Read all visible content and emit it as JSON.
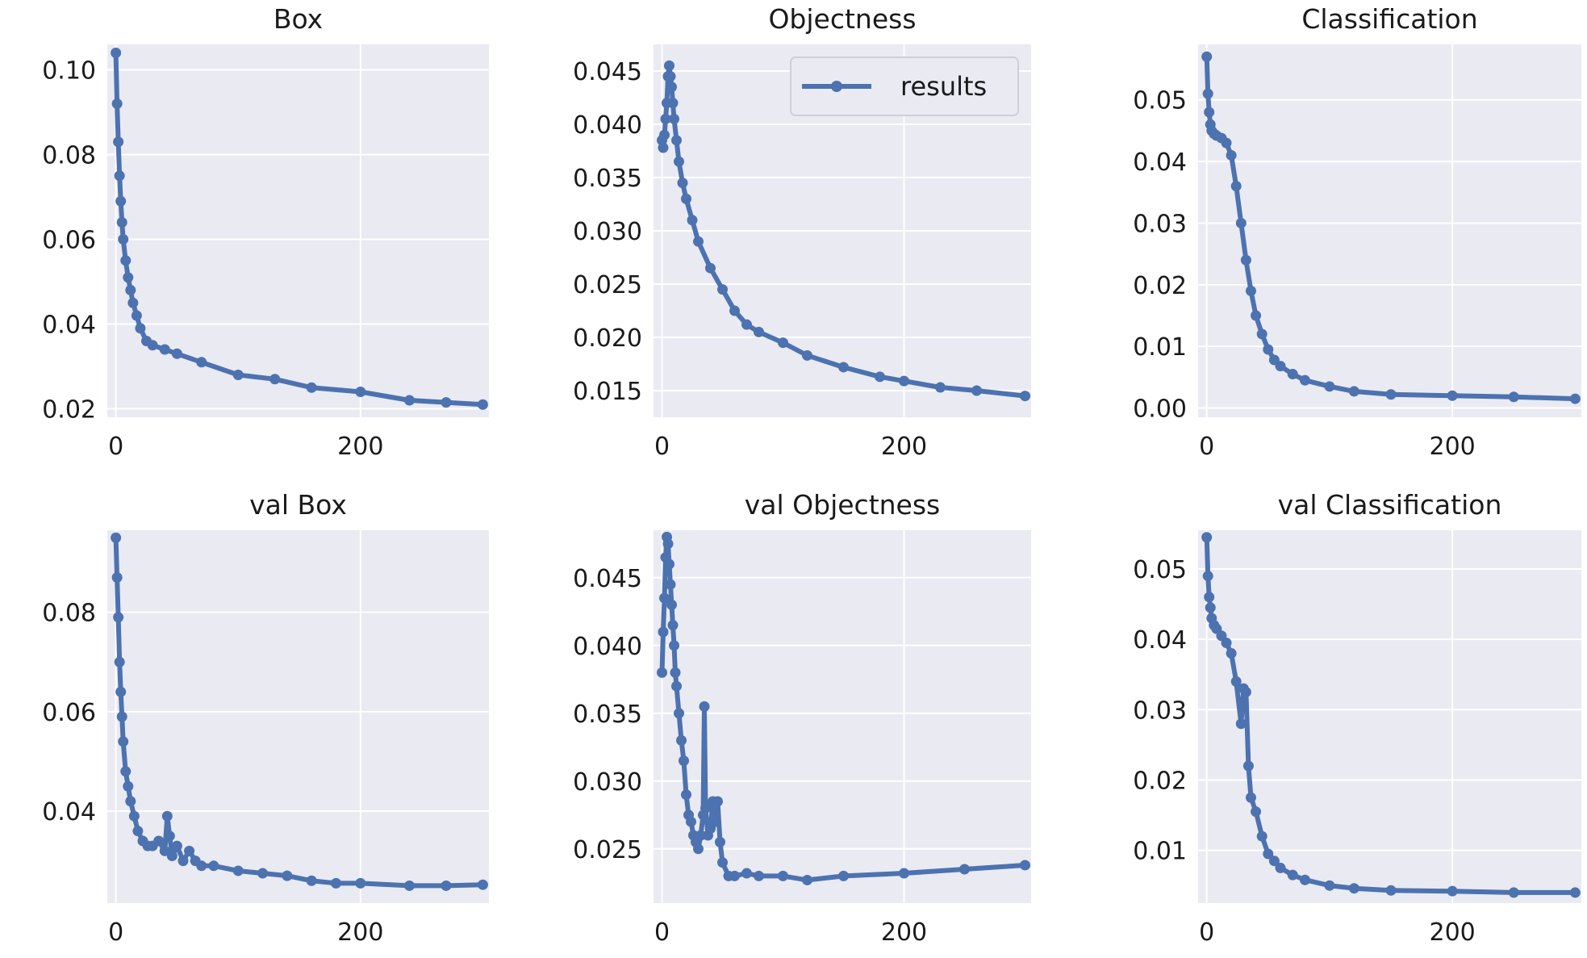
{
  "colors": {
    "series": "#4c72b0",
    "plot_background": "#eaeaf2",
    "grid": "#ffffff"
  },
  "chart_data": [
    {
      "type": "line",
      "title": "Box",
      "legend": null,
      "xlim": [
        -7,
        305
      ],
      "ylim": [
        0.018,
        0.106
      ],
      "xticks": [
        0,
        200
      ],
      "yticks": [
        0.02,
        0.04,
        0.06,
        0.08,
        0.1
      ],
      "ytick_labels": [
        "0.02",
        "0.04",
        "0.06",
        "0.08",
        "0.10"
      ],
      "series": [
        {
          "name": "results",
          "x": [
            0,
            1,
            2,
            3,
            4,
            5,
            6,
            8,
            10,
            12,
            14,
            17,
            20,
            25,
            30,
            40,
            50,
            70,
            100,
            130,
            160,
            200,
            240,
            270,
            300
          ],
          "y": [
            0.104,
            0.092,
            0.083,
            0.075,
            0.069,
            0.064,
            0.06,
            0.055,
            0.051,
            0.048,
            0.045,
            0.042,
            0.039,
            0.036,
            0.035,
            0.034,
            0.033,
            0.031,
            0.028,
            0.027,
            0.025,
            0.024,
            0.022,
            0.0215,
            0.021
          ]
        }
      ]
    },
    {
      "type": "line",
      "title": "Objectness",
      "legend": {
        "entries": [
          "results"
        ],
        "position": "upper right"
      },
      "xlim": [
        -7,
        305
      ],
      "ylim": [
        0.0125,
        0.0475
      ],
      "xticks": [
        0,
        200
      ],
      "yticks": [
        0.015,
        0.02,
        0.025,
        0.03,
        0.035,
        0.04,
        0.045
      ],
      "ytick_labels": [
        "0.015",
        "0.020",
        "0.025",
        "0.030",
        "0.035",
        "0.040",
        "0.045"
      ],
      "series": [
        {
          "name": "results",
          "x": [
            0,
            1,
            2,
            3,
            4,
            5,
            6,
            7,
            8,
            9,
            10,
            12,
            14,
            17,
            20,
            25,
            30,
            40,
            50,
            60,
            70,
            80,
            100,
            120,
            150,
            180,
            200,
            230,
            260,
            300
          ],
          "y": [
            0.0385,
            0.0378,
            0.039,
            0.0405,
            0.042,
            0.0445,
            0.0455,
            0.0445,
            0.0435,
            0.042,
            0.0405,
            0.0385,
            0.0365,
            0.0345,
            0.033,
            0.031,
            0.029,
            0.0265,
            0.0245,
            0.0225,
            0.0212,
            0.0205,
            0.0195,
            0.0183,
            0.0172,
            0.0163,
            0.0159,
            0.0153,
            0.015,
            0.0145
          ]
        }
      ]
    },
    {
      "type": "line",
      "title": "Classification",
      "legend": null,
      "xlim": [
        -7,
        305
      ],
      "ylim": [
        -0.0015,
        0.059
      ],
      "xticks": [
        0,
        200
      ],
      "yticks": [
        0,
        0.01,
        0.02,
        0.03,
        0.04,
        0.05
      ],
      "ytick_labels": [
        "0.00",
        "0.01",
        "0.02",
        "0.03",
        "0.04",
        "0.05"
      ],
      "series": [
        {
          "name": "results",
          "x": [
            0,
            1,
            2,
            3,
            4,
            6,
            8,
            12,
            16,
            20,
            24,
            28,
            32,
            36,
            40,
            45,
            50,
            55,
            60,
            70,
            80,
            100,
            120,
            150,
            200,
            250,
            300
          ],
          "y": [
            0.057,
            0.051,
            0.048,
            0.046,
            0.045,
            0.0445,
            0.0442,
            0.0438,
            0.043,
            0.041,
            0.036,
            0.03,
            0.024,
            0.019,
            0.015,
            0.012,
            0.0095,
            0.0078,
            0.0068,
            0.0055,
            0.0045,
            0.0035,
            0.0027,
            0.0022,
            0.002,
            0.0018,
            0.0015
          ]
        }
      ]
    },
    {
      "type": "line",
      "title": "val Box",
      "legend": null,
      "xlim": [
        -7,
        305
      ],
      "ylim": [
        0.0215,
        0.0965
      ],
      "xticks": [
        0,
        200
      ],
      "yticks": [
        0.04,
        0.06,
        0.08
      ],
      "ytick_labels": [
        "0.04",
        "0.06",
        "0.08"
      ],
      "series": [
        {
          "name": "results",
          "x": [
            0,
            1,
            2,
            3,
            4,
            5,
            6,
            8,
            10,
            12,
            15,
            18,
            22,
            26,
            30,
            35,
            40,
            42,
            44,
            46,
            50,
            55,
            60,
            65,
            70,
            80,
            100,
            120,
            140,
            160,
            180,
            200,
            240,
            270,
            300
          ],
          "y": [
            0.095,
            0.087,
            0.079,
            0.07,
            0.064,
            0.059,
            0.054,
            0.048,
            0.045,
            0.042,
            0.039,
            0.036,
            0.034,
            0.033,
            0.033,
            0.034,
            0.032,
            0.039,
            0.035,
            0.031,
            0.033,
            0.03,
            0.032,
            0.03,
            0.029,
            0.029,
            0.028,
            0.0275,
            0.027,
            0.026,
            0.0255,
            0.0255,
            0.025,
            0.025,
            0.0252
          ]
        }
      ]
    },
    {
      "type": "line",
      "title": "val Objectness",
      "legend": null,
      "xlim": [
        -7,
        305
      ],
      "ylim": [
        0.021,
        0.0485
      ],
      "xticks": [
        0,
        200
      ],
      "yticks": [
        0.025,
        0.03,
        0.035,
        0.04,
        0.045
      ],
      "ytick_labels": [
        "0.025",
        "0.030",
        "0.035",
        "0.040",
        "0.045"
      ],
      "series": [
        {
          "name": "results",
          "x": [
            0,
            1,
            2,
            3,
            4,
            5,
            6,
            7,
            8,
            9,
            10,
            11,
            12,
            14,
            16,
            18,
            20,
            22,
            24,
            26,
            28,
            30,
            32,
            34,
            35,
            36,
            38,
            40,
            42,
            44,
            46,
            48,
            50,
            55,
            60,
            70,
            80,
            100,
            120,
            150,
            200,
            250,
            300
          ],
          "y": [
            0.038,
            0.041,
            0.0435,
            0.0465,
            0.048,
            0.0475,
            0.046,
            0.0445,
            0.043,
            0.0415,
            0.04,
            0.038,
            0.037,
            0.035,
            0.033,
            0.0315,
            0.029,
            0.0275,
            0.027,
            0.026,
            0.0255,
            0.025,
            0.026,
            0.0275,
            0.0355,
            0.028,
            0.026,
            0.0265,
            0.0285,
            0.027,
            0.0285,
            0.0255,
            0.024,
            0.023,
            0.023,
            0.0232,
            0.023,
            0.023,
            0.0227,
            0.023,
            0.0232,
            0.0235,
            0.0238
          ]
        }
      ]
    },
    {
      "type": "line",
      "title": "val Classification",
      "legend": null,
      "xlim": [
        -7,
        305
      ],
      "ylim": [
        0.0025,
        0.0555
      ],
      "xticks": [
        0,
        200
      ],
      "yticks": [
        0.01,
        0.02,
        0.03,
        0.04,
        0.05
      ],
      "ytick_labels": [
        "0.01",
        "0.02",
        "0.03",
        "0.04",
        "0.05"
      ],
      "series": [
        {
          "name": "results",
          "x": [
            0,
            1,
            2,
            3,
            4,
            6,
            8,
            12,
            16,
            20,
            24,
            28,
            30,
            32,
            34,
            36,
            40,
            45,
            50,
            55,
            60,
            70,
            80,
            100,
            120,
            150,
            200,
            250,
            300
          ],
          "y": [
            0.0545,
            0.049,
            0.046,
            0.0445,
            0.043,
            0.042,
            0.0415,
            0.0405,
            0.0395,
            0.038,
            0.034,
            0.028,
            0.033,
            0.0325,
            0.022,
            0.0175,
            0.0155,
            0.012,
            0.0095,
            0.0085,
            0.0075,
            0.0065,
            0.0058,
            0.005,
            0.0046,
            0.0043,
            0.0042,
            0.004,
            0.004
          ]
        }
      ]
    }
  ]
}
